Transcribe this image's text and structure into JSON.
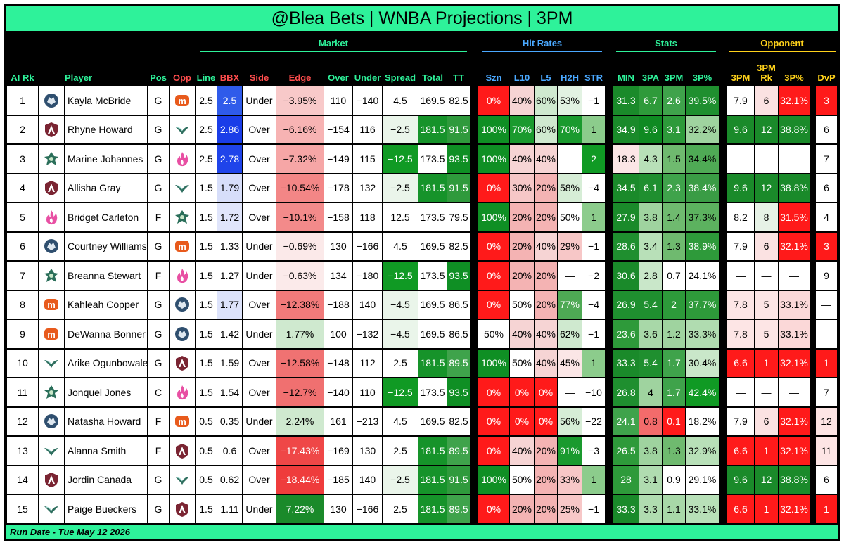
{
  "title": "@Blea Bets | WNBA Projections | 3PM",
  "footer": "Run Date - Tue May 12 2026",
  "groups": {
    "market": "Market",
    "hit_rates": "Hit Rates",
    "stats": "Stats",
    "opponent": "Opponent"
  },
  "columns": {
    "rk": "AI Rk",
    "player": "Player",
    "pos": "Pos",
    "opp": "Opp",
    "line": "Line",
    "bbx": "BBX",
    "side": "Side",
    "edge": "Edge",
    "over": "Over",
    "under": "Under",
    "spread": "Spread",
    "total": "Total",
    "tt": "TT",
    "szn": "Szn",
    "l10": "L10",
    "l5": "L5",
    "h2h": "H2H",
    "str": "STR",
    "min": "MIN",
    "tpa": "3PA",
    "tpm": "3PM",
    "tpp": "3P%",
    "opp_3pm": "3PM",
    "opp_rk_top": "3PM",
    "opp_rk": "Rk",
    "opp_3pp": "3P%",
    "dvp": "DvP"
  },
  "teams": {
    "lynx": {
      "icon": "wolf-icon",
      "color": "#2f4f6f"
    },
    "mercury": {
      "icon": "mercury-m-icon",
      "color": "#e85a1c"
    },
    "dream": {
      "icon": "dream-a-icon",
      "color": "#7a2432"
    },
    "wings": {
      "icon": "wings-icon",
      "color": "#2f6f5f"
    },
    "storm": {
      "icon": "storm-icon",
      "color": "#2b6f5a"
    },
    "fever": {
      "icon": "fever-flame-icon",
      "color": "#e84fa3"
    }
  },
  "rows": [
    {
      "rk": "1",
      "player": "Kayla McBride",
      "team": "lynx",
      "pos": "G",
      "opp": "mercury",
      "line": "2.5",
      "bbx": "2.5",
      "side": "Under",
      "edge": "−3.95%",
      "over": "110",
      "under": "−140",
      "spread": "4.5",
      "total": "169.5",
      "tt": "82.5",
      "szn": "0%",
      "l10": "40%",
      "l5": "60%",
      "h2h": "53%",
      "str": "−1",
      "min": "31.3",
      "tpa": "6.7",
      "tpm": "2.6",
      "tpp": "39.5%",
      "o3pm": "7.9",
      "ork": "6",
      "o3pp": "32.1%",
      "dvp": "3"
    },
    {
      "rk": "2",
      "player": "Rhyne Howard",
      "team": "dream",
      "pos": "G",
      "opp": "wings",
      "line": "2.5",
      "bbx": "2.86",
      "side": "Over",
      "edge": "−6.16%",
      "over": "−154",
      "under": "116",
      "spread": "−2.5",
      "total": "181.5",
      "tt": "91.5",
      "szn": "100%",
      "l10": "70%",
      "l5": "60%",
      "h2h": "70%",
      "str": "1",
      "min": "34.9",
      "tpa": "9.6",
      "tpm": "3.1",
      "tpp": "32.2%",
      "o3pm": "9.6",
      "ork": "12",
      "o3pp": "38.8%",
      "dvp": "6"
    },
    {
      "rk": "3",
      "player": "Marine Johannes",
      "team": "storm",
      "pos": "G",
      "opp": "fever",
      "line": "2.5",
      "bbx": "2.78",
      "side": "Over",
      "edge": "−7.32%",
      "over": "−149",
      "under": "115",
      "spread": "−12.5",
      "total": "173.5",
      "tt": "93.5",
      "szn": "100%",
      "l10": "40%",
      "l5": "40%",
      "h2h": "—",
      "str": "2",
      "min": "18.3",
      "tpa": "4.3",
      "tpm": "1.5",
      "tpp": "34.4%",
      "o3pm": "—",
      "ork": "—",
      "o3pp": "—",
      "dvp": "7"
    },
    {
      "rk": "4",
      "player": "Allisha Gray",
      "team": "dream",
      "pos": "G",
      "opp": "wings",
      "line": "1.5",
      "bbx": "1.79",
      "side": "Over",
      "edge": "−10.54%",
      "over": "−178",
      "under": "132",
      "spread": "−2.5",
      "total": "181.5",
      "tt": "91.5",
      "szn": "0%",
      "l10": "30%",
      "l5": "20%",
      "h2h": "58%",
      "str": "−4",
      "min": "34.5",
      "tpa": "6.1",
      "tpm": "2.3",
      "tpp": "38.4%",
      "o3pm": "9.6",
      "ork": "12",
      "o3pp": "38.8%",
      "dvp": "6"
    },
    {
      "rk": "5",
      "player": "Bridget Carleton",
      "team": "fever",
      "pos": "F",
      "opp": "storm",
      "line": "1.5",
      "bbx": "1.72",
      "side": "Over",
      "edge": "−10.1%",
      "over": "−158",
      "under": "118",
      "spread": "12.5",
      "total": "173.5",
      "tt": "79.5",
      "szn": "100%",
      "l10": "20%",
      "l5": "20%",
      "h2h": "50%",
      "str": "1",
      "min": "27.9",
      "tpa": "3.8",
      "tpm": "1.4",
      "tpp": "37.3%",
      "o3pm": "8.2",
      "ork": "8",
      "o3pp": "31.5%",
      "dvp": "4"
    },
    {
      "rk": "6",
      "player": "Courtney Williams",
      "team": "lynx",
      "pos": "G",
      "opp": "mercury",
      "line": "1.5",
      "bbx": "1.33",
      "side": "Under",
      "edge": "−0.69%",
      "over": "130",
      "under": "−166",
      "spread": "4.5",
      "total": "169.5",
      "tt": "82.5",
      "szn": "0%",
      "l10": "20%",
      "l5": "40%",
      "h2h": "29%",
      "str": "−1",
      "min": "28.6",
      "tpa": "3.4",
      "tpm": "1.3",
      "tpp": "38.9%",
      "o3pm": "7.9",
      "ork": "6",
      "o3pp": "32.1%",
      "dvp": "3"
    },
    {
      "rk": "7",
      "player": "Breanna Stewart",
      "team": "storm",
      "pos": "F",
      "opp": "fever",
      "line": "1.5",
      "bbx": "1.27",
      "side": "Under",
      "edge": "−0.63%",
      "over": "134",
      "under": "−180",
      "spread": "−12.5",
      "total": "173.5",
      "tt": "93.5",
      "szn": "0%",
      "l10": "20%",
      "l5": "20%",
      "h2h": "—",
      "str": "−2",
      "min": "30.6",
      "tpa": "2.8",
      "tpm": "0.7",
      "tpp": "24.1%",
      "o3pm": "—",
      "ork": "—",
      "o3pp": "—",
      "dvp": "9"
    },
    {
      "rk": "8",
      "player": "Kahleah Copper",
      "team": "mercury",
      "pos": "G",
      "opp": "lynx",
      "line": "1.5",
      "bbx": "1.77",
      "side": "Over",
      "edge": "−12.38%",
      "over": "−188",
      "under": "140",
      "spread": "−4.5",
      "total": "169.5",
      "tt": "86.5",
      "szn": "0%",
      "l10": "50%",
      "l5": "20%",
      "h2h": "77%",
      "str": "−4",
      "min": "26.9",
      "tpa": "5.4",
      "tpm": "2",
      "tpp": "37.7%",
      "o3pm": "7.8",
      "ork": "5",
      "o3pp": "33.1%",
      "dvp": "—"
    },
    {
      "rk": "9",
      "player": "DeWanna Bonner",
      "team": "mercury",
      "pos": "G",
      "opp": "lynx",
      "line": "1.5",
      "bbx": "1.42",
      "side": "Under",
      "edge": "1.77%",
      "over": "100",
      "under": "−132",
      "spread": "−4.5",
      "total": "169.5",
      "tt": "86.5",
      "szn": "50%",
      "l10": "40%",
      "l5": "40%",
      "h2h": "62%",
      "str": "−1",
      "min": "23.6",
      "tpa": "3.6",
      "tpm": "1.2",
      "tpp": "33.3%",
      "o3pm": "7.8",
      "ork": "5",
      "o3pp": "33.1%",
      "dvp": "—"
    },
    {
      "rk": "10",
      "player": "Arike Ogunbowale",
      "team": "wings",
      "pos": "G",
      "opp": "dream",
      "line": "1.5",
      "bbx": "1.59",
      "side": "Over",
      "edge": "−12.58%",
      "over": "−148",
      "under": "112",
      "spread": "2.5",
      "total": "181.5",
      "tt": "89.5",
      "szn": "100%",
      "l10": "50%",
      "l5": "40%",
      "h2h": "45%",
      "str": "1",
      "min": "33.3",
      "tpa": "5.4",
      "tpm": "1.7",
      "tpp": "30.4%",
      "o3pm": "6.6",
      "ork": "1",
      "o3pp": "32.1%",
      "dvp": "1"
    },
    {
      "rk": "11",
      "player": "Jonquel Jones",
      "team": "storm",
      "pos": "C",
      "opp": "fever",
      "line": "1.5",
      "bbx": "1.54",
      "side": "Over",
      "edge": "−12.7%",
      "over": "−140",
      "under": "110",
      "spread": "−12.5",
      "total": "173.5",
      "tt": "93.5",
      "szn": "0%",
      "l10": "0%",
      "l5": "0%",
      "h2h": "—",
      "str": "−10",
      "min": "26.8",
      "tpa": "4",
      "tpm": "1.7",
      "tpp": "42.4%",
      "o3pm": "—",
      "ork": "—",
      "o3pp": "—",
      "dvp": "7"
    },
    {
      "rk": "12",
      "player": "Natasha Howard",
      "team": "lynx",
      "pos": "F",
      "opp": "mercury",
      "line": "0.5",
      "bbx": "0.35",
      "side": "Under",
      "edge": "2.24%",
      "over": "161",
      "under": "−213",
      "spread": "4.5",
      "total": "169.5",
      "tt": "82.5",
      "szn": "0%",
      "l10": "0%",
      "l5": "0%",
      "h2h": "56%",
      "str": "−22",
      "min": "24.1",
      "tpa": "0.8",
      "tpm": "0.1",
      "tpp": "18.2%",
      "o3pm": "7.9",
      "ork": "6",
      "o3pp": "32.1%",
      "dvp": "12"
    },
    {
      "rk": "13",
      "player": "Alanna Smith",
      "team": "wings",
      "pos": "F",
      "opp": "dream",
      "line": "0.5",
      "bbx": "0.6",
      "side": "Over",
      "edge": "−17.43%",
      "over": "−169",
      "under": "130",
      "spread": "2.5",
      "total": "181.5",
      "tt": "89.5",
      "szn": "0%",
      "l10": "40%",
      "l5": "20%",
      "h2h": "91%",
      "str": "−3",
      "min": "26.5",
      "tpa": "3.8",
      "tpm": "1.3",
      "tpp": "32.9%",
      "o3pm": "6.6",
      "ork": "1",
      "o3pp": "32.1%",
      "dvp": "11"
    },
    {
      "rk": "14",
      "player": "Jordin Canada",
      "team": "dream",
      "pos": "G",
      "opp": "wings",
      "line": "0.5",
      "bbx": "0.62",
      "side": "Over",
      "edge": "−18.44%",
      "over": "−185",
      "under": "140",
      "spread": "−2.5",
      "total": "181.5",
      "tt": "91.5",
      "szn": "100%",
      "l10": "50%",
      "l5": "20%",
      "h2h": "33%",
      "str": "1",
      "min": "28",
      "tpa": "3.1",
      "tpm": "0.9",
      "tpp": "29.1%",
      "o3pm": "9.6",
      "ork": "12",
      "o3pp": "38.8%",
      "dvp": "6"
    },
    {
      "rk": "15",
      "player": "Paige Bueckers",
      "team": "wings",
      "pos": "G",
      "opp": "dream",
      "line": "1.5",
      "bbx": "1.11",
      "side": "Under",
      "edge": "7.22%",
      "over": "130",
      "under": "−166",
      "spread": "2.5",
      "total": "181.5",
      "tt": "89.5",
      "szn": "0%",
      "l10": "20%",
      "l5": "20%",
      "h2h": "25%",
      "str": "−1",
      "min": "33.3",
      "tpa": "3.3",
      "tpm": "1.1",
      "tpp": "33.1%",
      "o3pm": "6.6",
      "ork": "1",
      "o3pp": "32.1%",
      "dvp": "1"
    }
  ],
  "fills": [
    {
      "bbx": "#2f5bea",
      "edge": "#f8c9c9",
      "spread": "#ffffff",
      "total": "#ffffff",
      "tt": "#ffffff",
      "szn": "#ff1a1a",
      "l10": "#f6d4d4",
      "l5": "#cfe9cf",
      "h2h": "#e2f2e2",
      "str": "#ffffff",
      "min": "#1a8a2a",
      "tpa": "#2e9a3a",
      "tpm": "#3fa34b",
      "tpp": "#1f8f2f",
      "o3pm": "#ffffff",
      "ork": "#fbe2e2",
      "o3pp": "#ff1a1a",
      "dvp": "#ff1a1a"
    },
    {
      "bbx": "#1a3de8",
      "edge": "#f7b3b3",
      "spread": "#eaf5ea",
      "total": "#16932a",
      "tt": "#2f9a3c",
      "szn": "#0f8f24",
      "l10": "#1a9a2e",
      "l5": "#cfe9cf",
      "h2h": "#1a9a2e",
      "str": "#8ccc8c",
      "min": "#1a8a2a",
      "tpa": "#0f8a22",
      "tpm": "#2d9a3a",
      "tpp": "#9fd39f",
      "o3pm": "#1a8a2a",
      "ork": "#1a8a2a",
      "o3pp": "#1a8a2a",
      "dvp": "#ffffff"
    },
    {
      "bbx": "#1f44ea",
      "edge": "#f6a6a6",
      "spread": "#109a24",
      "total": "#ffffff",
      "tt": "#0f8f24",
      "szn": "#0f8f24",
      "l10": "#f6d4d4",
      "l5": "#f6d4d4",
      "h2h": "#ffffff",
      "str": "#109a24",
      "min": "#fbe6e6",
      "tpa": "#b8e0b8",
      "tpm": "#6fba6f",
      "tpp": "#4faa55",
      "o3pm": "#ffffff",
      "ork": "#ffffff",
      "o3pp": "#ffffff",
      "dvp": "#ffffff"
    },
    {
      "bbx": "#d7defa",
      "edge": "#f38686",
      "spread": "#eaf5ea",
      "total": "#16932a",
      "tt": "#2f9a3c",
      "szn": "#ff1a1a",
      "l10": "#f6c7c7",
      "l5": "#f4b3b3",
      "h2h": "#d6edd6",
      "str": "#ffffff",
      "min": "#1a8a2a",
      "tpa": "#1f8f2f",
      "tpm": "#3fa34b",
      "tpp": "#3a9c45",
      "o3pm": "#1a8a2a",
      "ork": "#1a8a2a",
      "o3pp": "#1a8a2a",
      "dvp": "#ffffff"
    },
    {
      "bbx": "#e0e5fb",
      "edge": "#f38a8a",
      "spread": "#ffffff",
      "total": "#ffffff",
      "tt": "#ffffff",
      "szn": "#0f8f24",
      "l10": "#f4b3b3",
      "l5": "#f4b3b3",
      "h2h": "#ffffff",
      "str": "#8ccc8c",
      "min": "#1a8a2a",
      "tpa": "#9fd39f",
      "tpm": "#6fba6f",
      "tpp": "#5cb25f",
      "o3pm": "#ffffff",
      "ork": "#e6f2e6",
      "o3pp": "#ff1a1a",
      "dvp": "#ffffff"
    },
    {
      "bbx": "#ffffff",
      "edge": "#fbe9e9",
      "spread": "#ffffff",
      "total": "#ffffff",
      "tt": "#ffffff",
      "szn": "#ff1a1a",
      "l10": "#f4b3b3",
      "l5": "#f6d4d4",
      "h2h": "#f7c7c7",
      "str": "#ffffff",
      "min": "#1f8f2f",
      "tpa": "#b8e0b8",
      "tpm": "#6fba6f",
      "tpp": "#2e9a3a",
      "o3pm": "#ffffff",
      "ork": "#fbe2e2",
      "o3pp": "#ff1a1a",
      "dvp": "#ff1a1a"
    },
    {
      "bbx": "#ffffff",
      "edge": "#fbeaea",
      "spread": "#109a24",
      "total": "#ffffff",
      "tt": "#0f8f24",
      "szn": "#ff1a1a",
      "l10": "#f4b3b3",
      "l5": "#f4b3b3",
      "h2h": "#ffffff",
      "str": "#ffffff",
      "min": "#1a8a2a",
      "tpa": "#c9e7c9",
      "tpm": "#ffffff",
      "tpp": "#ffffff",
      "o3pm": "#ffffff",
      "ork": "#ffffff",
      "o3pp": "#ffffff",
      "dvp": "#ffffff"
    },
    {
      "bbx": "#dde3fb",
      "edge": "#f17a7a",
      "spread": "#eaf5ea",
      "total": "#ffffff",
      "tt": "#ffffff",
      "szn": "#ff1a1a",
      "l10": "#ffffff",
      "l5": "#f4b3b3",
      "h2h": "#4ea954",
      "str": "#ffffff",
      "min": "#1f8f2f",
      "tpa": "#1f8f2f",
      "tpm": "#2d9a3a",
      "tpp": "#2e9a3a",
      "o3pm": "#fde5e5",
      "ork": "#fde5e5",
      "o3pp": "#fbd8d8",
      "dvp": "#ffffff"
    },
    {
      "bbx": "#ffffff",
      "edge": "#cfe9cf",
      "spread": "#eaf5ea",
      "total": "#ffffff",
      "tt": "#ffffff",
      "szn": "#ffffff",
      "l10": "#f6d4d4",
      "l5": "#f6d4d4",
      "h2h": "#cfe9cf",
      "str": "#ffffff",
      "min": "#2e9a3a",
      "tpa": "#a8d8a8",
      "tpm": "#9fd39f",
      "tpp": "#b0dcb0",
      "o3pm": "#fde5e5",
      "ork": "#fde5e5",
      "o3pp": "#fbd8d8",
      "dvp": "#ffffff"
    },
    {
      "bbx": "#ffffff",
      "edge": "#f07272",
      "spread": "#ffffff",
      "total": "#16932a",
      "tt": "#3fa34b",
      "szn": "#0f8f24",
      "l10": "#ffffff",
      "l5": "#f6d4d4",
      "h2h": "#fbe6e6",
      "str": "#8ccc8c",
      "min": "#1a8a2a",
      "tpa": "#1f8f2f",
      "tpm": "#3fa34b",
      "tpp": "#c9e7c9",
      "o3pm": "#ff1a1a",
      "ork": "#ff1a1a",
      "o3pp": "#ff1a1a",
      "dvp": "#ff1a1a"
    },
    {
      "bbx": "#ffffff",
      "edge": "#f07070",
      "spread": "#109a24",
      "total": "#ffffff",
      "tt": "#0f8f24",
      "szn": "#ff1a1a",
      "l10": "#ff1a1a",
      "l5": "#ff1a1a",
      "h2h": "#ffffff",
      "str": "#ffffff",
      "min": "#1f8f2f",
      "tpa": "#9fd39f",
      "tpm": "#3fa34b",
      "tpp": "#109a24",
      "o3pm": "#ffffff",
      "ork": "#ffffff",
      "o3pp": "#ffffff",
      "dvp": "#ffffff"
    },
    {
      "bbx": "#ffffff",
      "edge": "#cfe9cf",
      "spread": "#ffffff",
      "total": "#ffffff",
      "tt": "#ffffff",
      "szn": "#ff1a1a",
      "l10": "#ff1a1a",
      "l5": "#ff1a1a",
      "h2h": "#d6edd6",
      "str": "#ffffff",
      "min": "#3fa34b",
      "tpa": "#f36b6b",
      "tpm": "#ff1a1a",
      "tpp": "#ffffff",
      "o3pm": "#ffffff",
      "ork": "#fbe2e2",
      "o3pp": "#ff1a1a",
      "dvp": "#fde5e5"
    },
    {
      "bbx": "#ffffff",
      "edge": "#ef4747",
      "spread": "#ffffff",
      "total": "#16932a",
      "tt": "#3fa34b",
      "szn": "#ff1a1a",
      "l10": "#f6d4d4",
      "l5": "#f4b3b3",
      "h2h": "#1a9a2e",
      "str": "#ffffff",
      "min": "#2e9a3a",
      "tpa": "#9fd39f",
      "tpm": "#6fba6f",
      "tpp": "#b8e0b8",
      "o3pm": "#ff1a1a",
      "ork": "#ff1a1a",
      "o3pp": "#ff1a1a",
      "dvp": "#fde5e5"
    },
    {
      "bbx": "#ffffff",
      "edge": "#ef3c3c",
      "spread": "#eaf5ea",
      "total": "#16932a",
      "tt": "#2f9a3c",
      "szn": "#0f8f24",
      "l10": "#ffffff",
      "l5": "#f4b3b3",
      "h2h": "#f7c7c7",
      "str": "#8ccc8c",
      "min": "#2e9a3a",
      "tpa": "#b0dcb0",
      "tpm": "#ffffff",
      "tpp": "#ffffff",
      "o3pm": "#1a8a2a",
      "ork": "#1a8a2a",
      "o3pp": "#1a8a2a",
      "dvp": "#ffffff"
    },
    {
      "bbx": "#ffffff",
      "edge": "#1a8a2a",
      "spread": "#ffffff",
      "total": "#16932a",
      "tt": "#3fa34b",
      "szn": "#ff1a1a",
      "l10": "#f4b3b3",
      "l5": "#f4b3b3",
      "h2h": "#f7c7c7",
      "str": "#ffffff",
      "min": "#1a8a2a",
      "tpa": "#b0dcb0",
      "tpm": "#a8d8a8",
      "tpp": "#b8e0b8",
      "o3pm": "#ff1a1a",
      "ork": "#ff1a1a",
      "o3pp": "#ff1a1a",
      "dvp": "#ff1a1a"
    }
  ]
}
